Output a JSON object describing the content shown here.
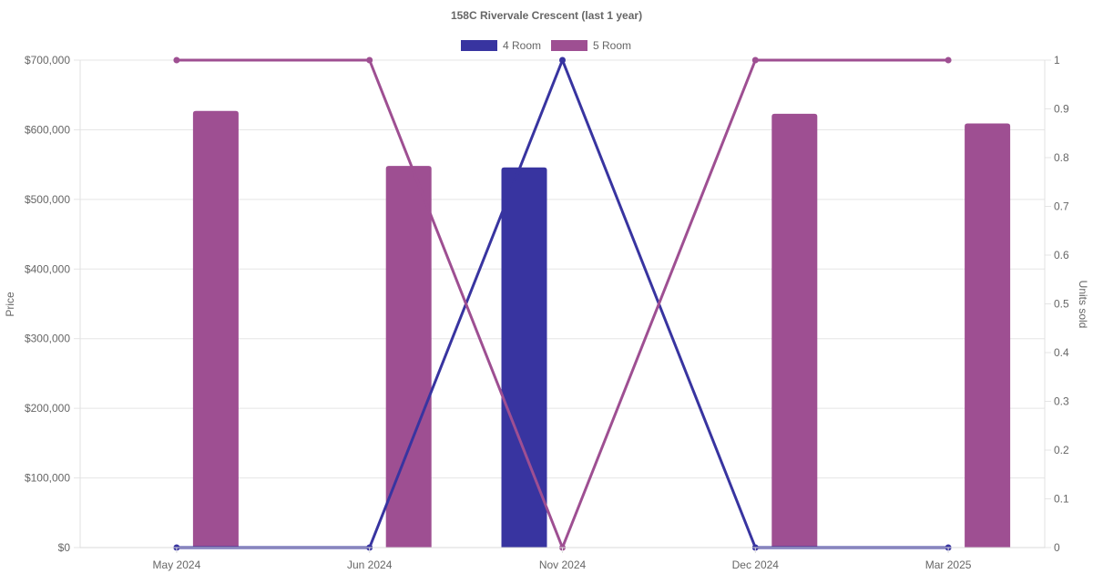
{
  "chart_data": {
    "type": "bar",
    "title": "158C Rivervale Crescent (last 1 year)",
    "categories": [
      "May 2024",
      "Jun 2024",
      "Nov 2024",
      "Dec 2024",
      "Mar 2025"
    ],
    "left_axis": {
      "label": "Price",
      "ylim": [
        0,
        700000
      ],
      "ticks": [
        "$0",
        "$100,000",
        "$200,000",
        "$300,000",
        "$400,000",
        "$500,000",
        "$600,000",
        "$700,000"
      ]
    },
    "right_axis": {
      "label": "Units sold",
      "ylim": [
        0,
        1
      ],
      "ticks": [
        "0",
        "0.1",
        "0.2",
        "0.3",
        "0.4",
        "0.5",
        "0.6",
        "0.7",
        "0.8",
        "0.9",
        "1"
      ]
    },
    "legend": {
      "placement": "top-center",
      "entries": [
        "4 Room",
        "5 Room"
      ]
    },
    "grid": true,
    "series": [
      {
        "name": "4 Room",
        "color": "#3834a0",
        "price": [
          null,
          null,
          546000,
          null,
          null
        ],
        "units_sold": [
          0,
          0,
          1,
          0,
          0
        ]
      },
      {
        "name": "5 Room",
        "color": "#9e4f92",
        "price": [
          627000,
          548000,
          null,
          623000,
          609000
        ],
        "units_sold": [
          1,
          1,
          0,
          1,
          1
        ]
      }
    ]
  }
}
